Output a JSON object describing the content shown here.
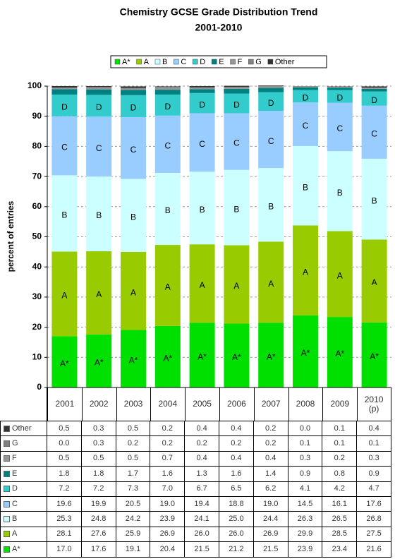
{
  "chart_data": {
    "type": "stacked_bar",
    "title": "Chemistry GCSE Grade Distribution Trend",
    "subtitle": "2001-2010",
    "y_label": "percent of entries",
    "categories": [
      "2001",
      "2002",
      "2003",
      "2004",
      "2005",
      "2006",
      "2007",
      "2008",
      "2009",
      "2010 (p)"
    ],
    "ylim": [
      0,
      100
    ],
    "yticks": [
      0,
      10,
      20,
      30,
      40,
      50,
      60,
      70,
      80,
      90,
      100
    ],
    "grid": true,
    "series": [
      {
        "name": "A*",
        "color": "#00e000",
        "values": [
          17.0,
          17.6,
          19.1,
          20.4,
          21.5,
          21.2,
          21.5,
          23.9,
          23.4,
          21.6
        ],
        "value_labels": [
          "17.0",
          "17.6",
          "19.1",
          "20.4",
          "21.5",
          "21.2",
          "21.5",
          "23.9",
          "23.4",
          "21.6"
        ]
      },
      {
        "name": "A",
        "color": "#99cc00",
        "values": [
          28.1,
          27.6,
          25.9,
          26.9,
          26.0,
          26.0,
          26.9,
          29.9,
          28.5,
          27.5
        ],
        "value_labels": [
          "28.1",
          "27.6",
          "25.9",
          "26.9",
          "26.0",
          "26.0",
          "26.9",
          "29.9",
          "28.5",
          "27.5"
        ]
      },
      {
        "name": "B",
        "color": "#ccffff",
        "values": [
          25.3,
          24.8,
          24.2,
          23.9,
          24.1,
          25.0,
          24.4,
          26.3,
          26.5,
          26.8
        ],
        "value_labels": [
          "25.3",
          "24.8",
          "24.2",
          "23.9",
          "24.1",
          "25.0",
          "24.4",
          "26.3",
          "26.5",
          "26.8"
        ]
      },
      {
        "name": "C",
        "color": "#99ccff",
        "values": [
          19.6,
          19.9,
          20.5,
          19.0,
          19.4,
          18.8,
          19.0,
          14.5,
          16.1,
          17.6
        ],
        "value_labels": [
          "19.6",
          "19.9",
          "20.5",
          "19.0",
          "19.4",
          "18.8",
          "19.0",
          "14.5",
          "16.1",
          "17.6"
        ]
      },
      {
        "name": "D",
        "color": "#33cccc",
        "values": [
          7.2,
          7.2,
          7.3,
          7.0,
          6.7,
          6.5,
          6.2,
          4.1,
          4.2,
          4.7
        ],
        "value_labels": [
          "7.2",
          "7.2",
          "7.3",
          "7.0",
          "6.7",
          "6.5",
          "6.2",
          "4.1",
          "4.2",
          "4.7"
        ]
      },
      {
        "name": "E",
        "color": "#008080",
        "values": [
          1.8,
          1.8,
          1.7,
          1.6,
          1.3,
          1.6,
          1.4,
          0.9,
          0.8,
          0.9
        ],
        "value_labels": [
          "1.8",
          "1.8",
          "1.7",
          "1.6",
          "1.3",
          "1.6",
          "1.4",
          "0.9",
          "0.8",
          "0.9"
        ]
      },
      {
        "name": "F",
        "color": "#969696",
        "values": [
          0.5,
          0.5,
          0.5,
          0.7,
          0.4,
          0.4,
          0.4,
          0.3,
          0.2,
          0.3
        ],
        "value_labels": [
          "0.5",
          "0.5",
          "0.5",
          "0.7",
          "0.4",
          "0.4",
          "0.4",
          "0.3",
          "0.2",
          "0.3"
        ]
      },
      {
        "name": "G",
        "color": "#808080",
        "values": [
          0.0,
          0.3,
          0.2,
          0.2,
          0.2,
          0.2,
          0.2,
          0.1,
          0.1,
          0.1
        ],
        "value_labels": [
          "0.0",
          "0.3",
          "0.2",
          "0.2",
          "0.2",
          "0.2",
          "0.2",
          "0.1",
          "0.1",
          "0.1"
        ]
      },
      {
        "name": "Other",
        "color": "#333333",
        "values": [
          0.5,
          0.3,
          0.5,
          0.2,
          0.4,
          0.4,
          0.2,
          0.0,
          0.1,
          0.4
        ],
        "value_labels": [
          "0.5",
          "0.3",
          "0.5",
          "0.2",
          "0.4",
          "0.4",
          "0.2",
          "0.0",
          "0.1",
          "0.4"
        ]
      }
    ]
  }
}
